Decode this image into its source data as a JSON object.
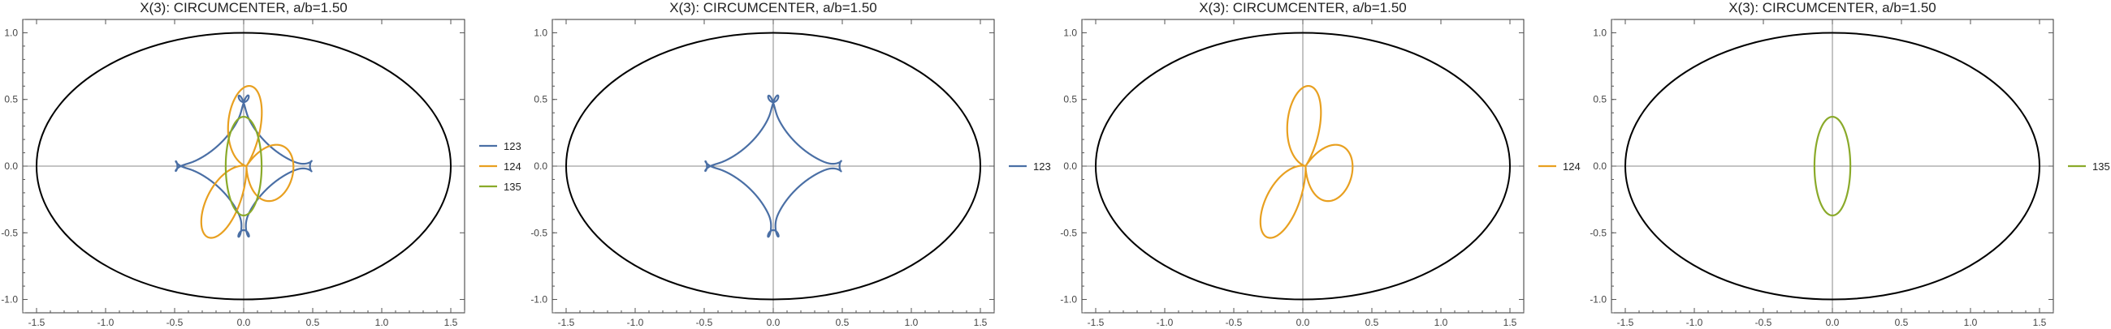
{
  "chart_data": [
    {
      "type": "line",
      "title": "X(3): CIRCUMCENTER, a/b=1.50",
      "xlim": [
        -1.6,
        1.6
      ],
      "ylim": [
        -1.1,
        1.1
      ],
      "xticks": [
        "-1.5",
        "-1.0",
        "-0.5",
        "0.0",
        "0.5",
        "1.0",
        "1.5"
      ],
      "yticks": [
        "-1.0",
        "-0.5",
        "0.0",
        "0.5",
        "1.0"
      ],
      "grid": false,
      "legend": "right",
      "ellipse": {
        "a": 1.5,
        "b": 1.0
      },
      "series": [
        {
          "name": "123",
          "shape": "quad-loop",
          "color": "#4a6fa5"
        },
        {
          "name": "124",
          "shape": "tri-loop",
          "color": "#e8a020"
        },
        {
          "name": "135",
          "shape": "oval",
          "color": "#8aaa2a"
        }
      ]
    },
    {
      "type": "line",
      "title": "X(3): CIRCUMCENTER, a/b=1.50",
      "xlim": [
        -1.6,
        1.6
      ],
      "ylim": [
        -1.1,
        1.1
      ],
      "xticks": [
        "-1.5",
        "-1.0",
        "-0.5",
        "0.0",
        "0.5",
        "1.0",
        "1.5"
      ],
      "yticks": [
        "-1.0",
        "-0.5",
        "0.0",
        "0.5",
        "1.0"
      ],
      "grid": false,
      "legend": "right",
      "ellipse": {
        "a": 1.5,
        "b": 1.0
      },
      "series": [
        {
          "name": "123",
          "shape": "quad-loop",
          "color": "#4a6fa5"
        }
      ]
    },
    {
      "type": "line",
      "title": "X(3): CIRCUMCENTER, a/b=1.50",
      "xlim": [
        -1.6,
        1.6
      ],
      "ylim": [
        -1.1,
        1.1
      ],
      "xticks": [
        "-1.5",
        "-1.0",
        "-0.5",
        "0.0",
        "0.5",
        "1.0",
        "1.5"
      ],
      "yticks": [
        "-1.0",
        "-0.5",
        "0.0",
        "0.5",
        "1.0"
      ],
      "grid": false,
      "legend": "right",
      "ellipse": {
        "a": 1.5,
        "b": 1.0
      },
      "series": [
        {
          "name": "124",
          "shape": "tri-loop",
          "color": "#e8a020"
        }
      ]
    },
    {
      "type": "line",
      "title": "X(3): CIRCUMCENTER, a/b=1.50",
      "xlim": [
        -1.6,
        1.6
      ],
      "ylim": [
        -1.1,
        1.1
      ],
      "xticks": [
        "-1.5",
        "-1.0",
        "-0.5",
        "0.0",
        "0.5",
        "1.0",
        "1.5"
      ],
      "yticks": [
        "-1.0",
        "-0.5",
        "0.0",
        "0.5",
        "1.0"
      ],
      "grid": false,
      "legend": "right",
      "ellipse": {
        "a": 1.5,
        "b": 1.0
      },
      "series": [
        {
          "name": "135",
          "shape": "oval",
          "color": "#8aaa2a"
        }
      ]
    }
  ]
}
